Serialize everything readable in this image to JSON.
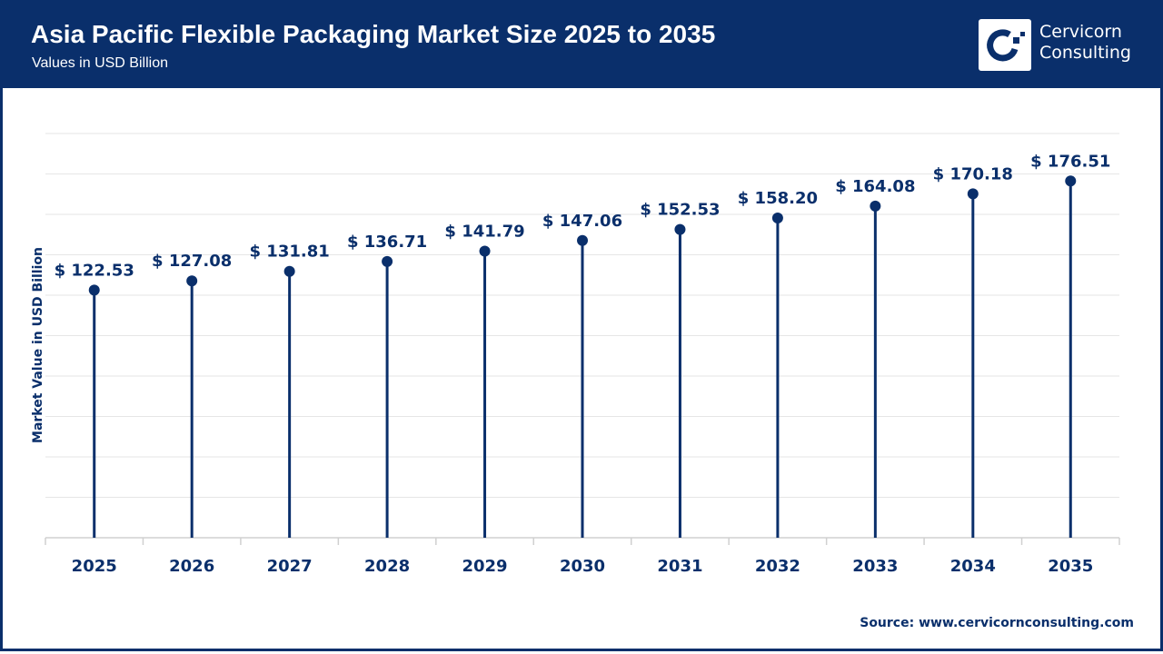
{
  "header": {
    "title": "Asia Pacific Flexible Packaging Market Size 2025 to 2035",
    "subtitle": "Values in USD Billion",
    "logo_text_line1": "Cervicorn",
    "logo_text_line2": "Consulting"
  },
  "source": "Source: www.cervicornconsulting.com",
  "colors": {
    "brand": "#0a2f6b",
    "grid": "#e6e6e6"
  },
  "chart_data": {
    "type": "lollipop",
    "categories": [
      "2025",
      "2026",
      "2027",
      "2028",
      "2029",
      "2030",
      "2031",
      "2032",
      "2033",
      "2034",
      "2035"
    ],
    "values": [
      122.53,
      127.08,
      131.81,
      136.71,
      141.79,
      147.06,
      152.53,
      158.2,
      164.08,
      170.18,
      176.51
    ],
    "data_labels": [
      "$ 122.53",
      "$ 127.08",
      "$ 131.81",
      "$ 136.71",
      "$ 141.79",
      "$ 147.06",
      "$ 152.53",
      "$ 158.20",
      "$ 164.08",
      "$ 170.18",
      "$ 176.51"
    ],
    "ylabel": "Market Value in USD Billion",
    "xlabel": "",
    "ylim": [
      0,
      200
    ],
    "grid": true
  }
}
